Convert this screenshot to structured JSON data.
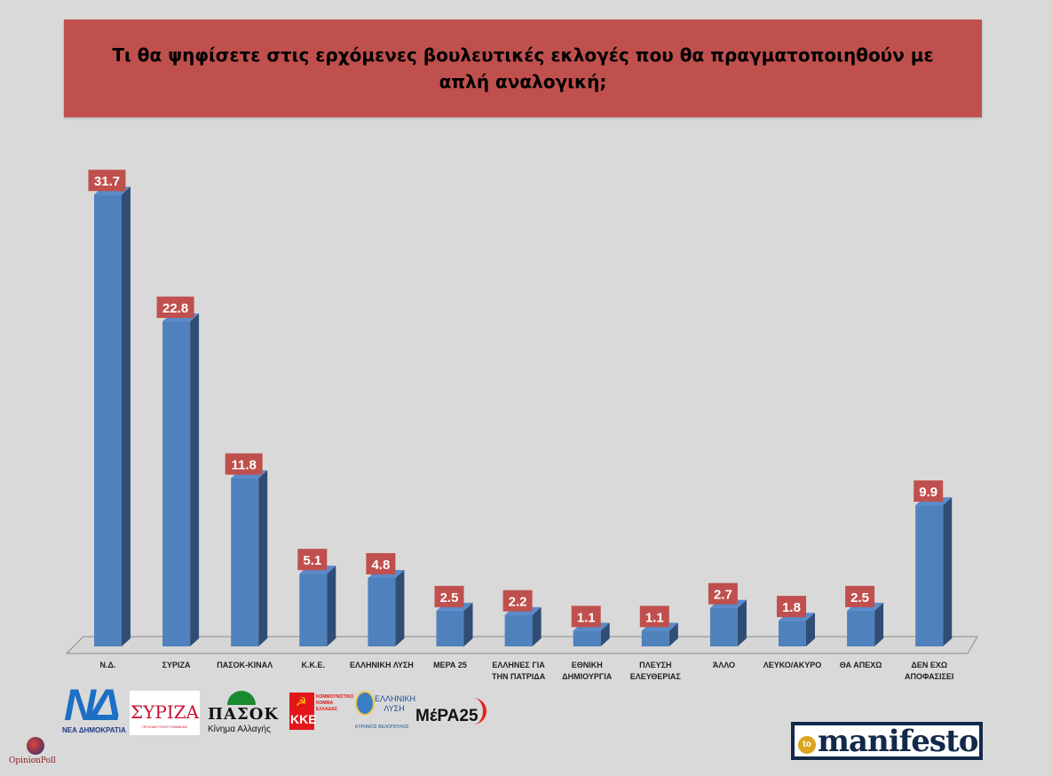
{
  "title": "Τι θα ψηφίσετε στις ερχόμενες βουλευτικές εκλογές που θα πραγματοποιηθούν με απλή αναλογική;",
  "chart_data": {
    "type": "bar",
    "title": "Τι θα ψηφίσετε στις ερχόμενες βουλευτικές εκλογές που θα πραγματοποιηθούν με απλή αναλογική;",
    "categories": [
      [
        "Ν.Δ."
      ],
      [
        "ΣΥΡΙΖΑ"
      ],
      [
        "ΠΑΣΟΚ-ΚΙΝΑΛ"
      ],
      [
        "Κ.Κ.Ε."
      ],
      [
        "ΕΛΛΗΝΙΚΗ ΛΥΣΗ"
      ],
      [
        "ΜΕΡΑ 25"
      ],
      [
        "ΕΛΛΗΝΕΣ ΓΙΑ",
        "ΤΗΝ ΠΑΤΡΙΔΑ"
      ],
      [
        "ΕΘΝΙΚΗ",
        "ΔΗΜΙΟΥΡΓΙΑ"
      ],
      [
        "ΠΛΕΥΣΗ",
        "ΕΛΕΥΘΕΡΙΑΣ"
      ],
      [
        "ΆΛΛΟ"
      ],
      [
        "ΛΕΥΚΟ/ΑΚΥΡΟ"
      ],
      [
        "ΘΑ ΑΠΕΧΩ"
      ],
      [
        "ΔΕΝ ΕΧΩ",
        "ΑΠΟΦΑΣΙΣΕΙ"
      ]
    ],
    "values": [
      31.7,
      22.8,
      11.8,
      5.1,
      4.8,
      2.5,
      2.2,
      1.1,
      1.1,
      2.7,
      1.8,
      2.5,
      9.9
    ],
    "value_labels": [
      "31.7",
      "22.8",
      "11.8",
      "5.1",
      "4.8",
      "2.5",
      "2.2",
      "1.1",
      "1.1",
      "2.7",
      "1.8",
      "2.5",
      "9.9"
    ],
    "ylim": [
      0,
      33
    ],
    "style": "3d-column",
    "bar_color": "#4f81bd",
    "bar_side_color": "#2f4d75",
    "label_bg_color": "#c0504d",
    "grid": false,
    "legend": "none"
  },
  "logos": {
    "nd": {
      "mark": "ΝΔ",
      "caption": "ΝΕΑ ΔΗΜΟΚΡΑΤΙΑ"
    },
    "syriza": {
      "mark": "ΣΥΡΙΖΑ",
      "caption": "ΠΡΟΟΔΕΥΤΙΚΗ ΣΥΜΜΑΧΙΑ"
    },
    "pasok": {
      "mark": "ΠΑΣΟΚ",
      "caption": "Κίνημα Αλλαγής"
    },
    "kke": {
      "mark": "ΚΚΕ",
      "caption": "ΚΟΜΜΟΥΝΙΣΤΙΚΟ ΚΟΜΜΑ ΕΛΛΑΔΑΣ"
    },
    "elliniki_lysi": {
      "mark": "ΕΛΛΗΝΙΚΗ ΛΥΣΗ",
      "caption": "ΚΥΡΙΑΚΟΣ ΒΕΛΟΠΟΥΛΟΣ"
    },
    "mera25": {
      "mark": "ΜέΡΑ25"
    },
    "opinion_poll": {
      "mark": "OpinionPoll"
    },
    "manifesto": {
      "prefix": "to",
      "mark": "manifesto"
    }
  }
}
